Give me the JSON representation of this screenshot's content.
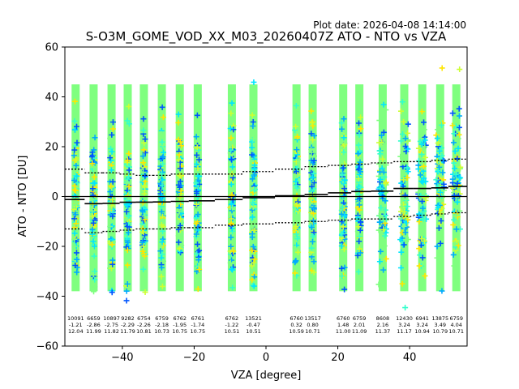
{
  "chart_data": {
    "type": "scatter",
    "title": "S-O3M_GOME_VOD_XX_M03_20260407Z ATO - NTO vs VZA",
    "plot_date": "Plot date: 2026-04-08 14:14:00",
    "xlabel": "VZA [degree]",
    "ylabel": "ATO - NTO [DU]",
    "xlim": [
      -56,
      56
    ],
    "ylim": [
      -60,
      60
    ],
    "xticks": [
      -40,
      -20,
      0,
      20,
      40
    ],
    "yticks": [
      -60,
      -40,
      -20,
      0,
      20,
      40,
      60
    ],
    "grid": false,
    "scatter_colors": [
      "#7fff7f",
      "#00e5ff",
      "#33ffcc",
      "#ffe600",
      "#ccff33",
      "#0055ff",
      "#00aaff"
    ],
    "bins": [
      {
        "x": -53,
        "count": "10091",
        "median": "-1.21",
        "std": "12.04",
        "mean": -1.21,
        "p_lo": -13.0,
        "p_hi": 11.0
      },
      {
        "x": -48,
        "count": "6659",
        "median": "-2.86",
        "std": "11.99",
        "mean": -2.86,
        "p_lo": -14.5,
        "p_hi": 9.5
      },
      {
        "x": -43,
        "count": "10897",
        "median": "-2.75",
        "std": "11.82",
        "mean": -2.75,
        "p_lo": -14.0,
        "p_hi": 9.5
      },
      {
        "x": -38.5,
        "count": "9282",
        "median": "-2.29",
        "std": "11.79",
        "mean": -2.29,
        "p_lo": -13.5,
        "p_hi": 9.0
      },
      {
        "x": -34,
        "count": "6754",
        "median": "-2.26",
        "std": "10.81",
        "mean": -2.26,
        "p_lo": -13.0,
        "p_hi": 8.5
      },
      {
        "x": -29,
        "count": "6759",
        "median": "-2.18",
        "std": "10.73",
        "mean": -2.18,
        "p_lo": -13.0,
        "p_hi": 8.5
      },
      {
        "x": -24,
        "count": "6762",
        "median": "-1.95",
        "std": "10.75",
        "mean": -1.95,
        "p_lo": -12.5,
        "p_hi": 9.0
      },
      {
        "x": -19,
        "count": "6761",
        "median": "-1.74",
        "std": "10.75",
        "mean": -1.74,
        "p_lo": -12.5,
        "p_hi": 9.0
      },
      {
        "x": -9.5,
        "count": "6762",
        "median": "-1.22",
        "std": "10.51",
        "mean": -1.22,
        "p_lo": -11.5,
        "p_hi": 9.0
      },
      {
        "x": -3.5,
        "count": "13521",
        "median": "-0.47",
        "std": "10.51",
        "mean": -0.47,
        "p_lo": -11.0,
        "p_hi": 10.0
      },
      {
        "x": 8.5,
        "count": "6760",
        "median": "0.32",
        "std": "10.59",
        "mean": 0.32,
        "p_lo": -10.5,
        "p_hi": 11.0
      },
      {
        "x": 13,
        "count": "13517",
        "median": "0.80",
        "std": "10.71",
        "mean": 0.8,
        "p_lo": -10.0,
        "p_hi": 12.0
      },
      {
        "x": 21.5,
        "count": "6760",
        "median": "1.48",
        "std": "11.00",
        "mean": 1.48,
        "p_lo": -9.5,
        "p_hi": 12.5
      },
      {
        "x": 26,
        "count": "6759",
        "median": "2.01",
        "std": "11.09",
        "mean": 2.01,
        "p_lo": -9.0,
        "p_hi": 13.0
      },
      {
        "x": 32.5,
        "count": "8608",
        "median": "2.16",
        "std": "11.37",
        "mean": 2.16,
        "p_lo": -9.0,
        "p_hi": 13.5
      },
      {
        "x": 38.5,
        "count": "12430",
        "median": "3.24",
        "std": "11.17",
        "mean": 3.24,
        "p_lo": -8.0,
        "p_hi": 14.0
      },
      {
        "x": 43.5,
        "count": "6941",
        "median": "3.24",
        "std": "10.94",
        "mean": 3.24,
        "p_lo": -7.5,
        "p_hi": 14.0
      },
      {
        "x": 48.5,
        "count": "13875",
        "median": "3.49",
        "std": "10.79",
        "mean": 3.49,
        "p_lo": -7.0,
        "p_hi": 14.5
      },
      {
        "x": 53,
        "count": "6759",
        "median": "4.04",
        "std": "10.71",
        "mean": 4.04,
        "p_lo": -6.5,
        "p_hi": 15.0
      }
    ]
  }
}
